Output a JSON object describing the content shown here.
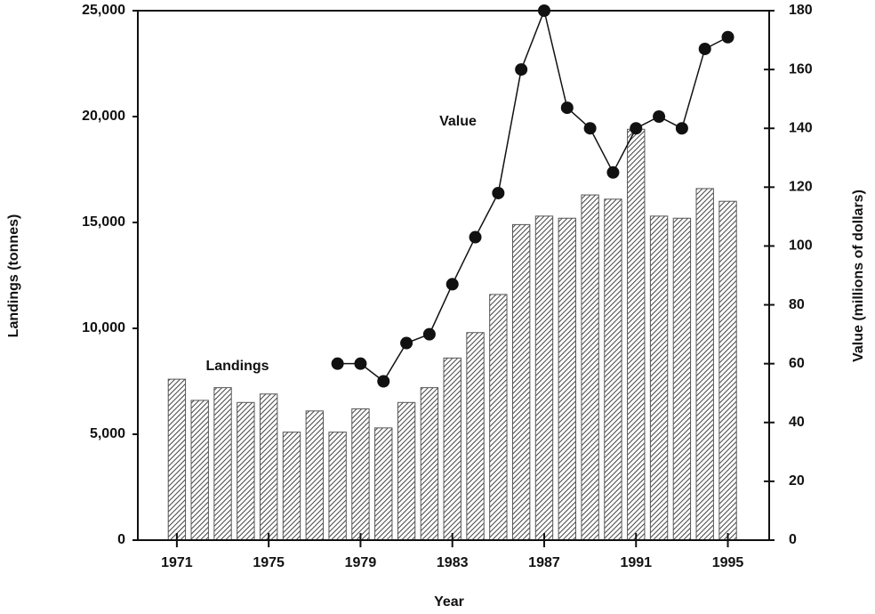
{
  "chart_data": {
    "type": "bar-line",
    "x_label": "Year",
    "y_label": "Landings (tonnes)",
    "y2_label": "Value (millions of dollars)",
    "x": [
      1971,
      1972,
      1973,
      1974,
      1975,
      1976,
      1977,
      1978,
      1979,
      1980,
      1981,
      1982,
      1983,
      1984,
      1985,
      1986,
      1987,
      1988,
      1989,
      1990,
      1991,
      1992,
      1993,
      1994,
      1995
    ],
    "series": [
      {
        "name": "Landings",
        "type": "bar",
        "color": "#555555",
        "values": [
          7600,
          6600,
          7200,
          6500,
          6900,
          5100,
          6100,
          5100,
          6200,
          5300,
          6500,
          7200,
          8600,
          9800,
          11600,
          14900,
          15300,
          15200,
          16300,
          16100,
          19400,
          15300,
          15200,
          16600,
          16000
        ]
      },
      {
        "name": "Value",
        "type": "line",
        "axis": "y2",
        "color": "#111111",
        "values": [
          null,
          null,
          null,
          null,
          null,
          null,
          null,
          60,
          60,
          54,
          67,
          70,
          87,
          103,
          118,
          160,
          180,
          147,
          140,
          125,
          140,
          144,
          140,
          167,
          171
        ]
      }
    ],
    "xlim": [
      1969.3,
      1996.8
    ],
    "xticks": [
      1971,
      1975,
      1979,
      1983,
      1987,
      1991,
      1995
    ],
    "ylim": [
      0,
      25000
    ],
    "yticks": [
      0,
      {
        "value": 5000,
        "label": "5,000"
      },
      {
        "value": 10000,
        "label": "10,000"
      },
      {
        "value": 15000,
        "label": "15,000"
      },
      {
        "value": 20000,
        "label": "20,000"
      },
      {
        "value": 25000,
        "label": "25,000"
      }
    ],
    "y2lim": [
      0,
      180
    ],
    "y2ticks": [
      0,
      20,
      40,
      60,
      80,
      100,
      120,
      140,
      160,
      180
    ]
  }
}
